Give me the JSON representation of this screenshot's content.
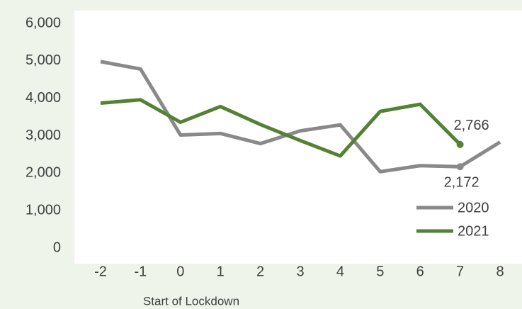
{
  "chart_data": {
    "type": "line",
    "x_label": "Start of Lockdown",
    "x": [
      -2,
      -1,
      0,
      1,
      2,
      3,
      4,
      5,
      6,
      7,
      8
    ],
    "series": [
      {
        "name": "2020",
        "color": "#898989",
        "values": [
          4980,
          4780,
          3020,
          3060,
          2790,
          3130,
          3290,
          2040,
          2200,
          2172,
          2830
        ],
        "value_labels": [
          null,
          null,
          null,
          null,
          null,
          null,
          null,
          null,
          null,
          "2,172",
          null
        ]
      },
      {
        "name": "2021",
        "color": "#548235",
        "values": [
          3870,
          3960,
          3360,
          3780,
          3300,
          2870,
          2460,
          3650,
          3840,
          2766,
          null
        ],
        "value_labels": [
          null,
          null,
          null,
          null,
          null,
          null,
          null,
          null,
          null,
          "2,766",
          null
        ]
      }
    ],
    "xlim": [
      -2,
      8
    ],
    "xticks": [
      -2,
      -1,
      0,
      1,
      2,
      3,
      4,
      5,
      6,
      7,
      8
    ],
    "ylim": [
      0,
      6000
    ],
    "yticks": [
      0,
      {
        "value": 1000,
        "label": "1,000"
      },
      {
        "value": 2000,
        "label": "2,000"
      },
      {
        "value": 3000,
        "label": "3,000"
      },
      {
        "value": 4000,
        "label": "4,000"
      },
      {
        "value": 5000,
        "label": "5,000"
      },
      {
        "value": 6000,
        "label": "6,000"
      }
    ],
    "grid": false,
    "legend": "bottom-right"
  }
}
